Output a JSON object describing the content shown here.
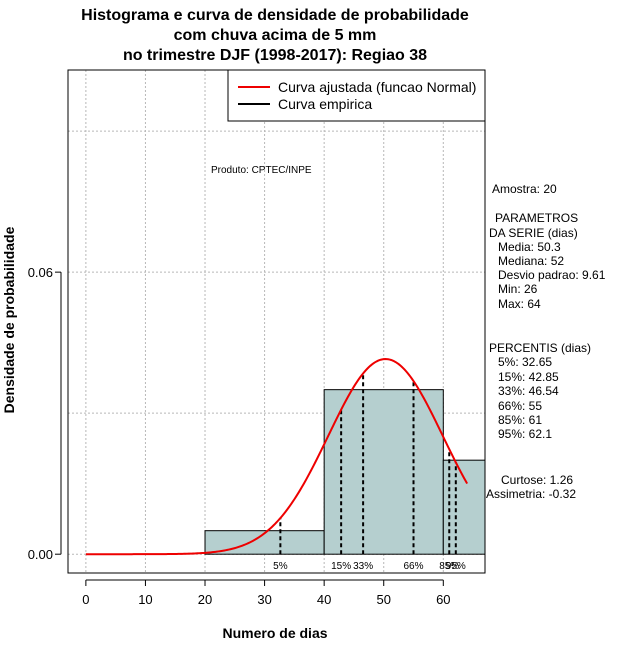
{
  "chart_data": {
    "type": "bar",
    "title_lines": [
      "Histograma e curva de densidade de probabilidade",
      "com chuva acima de 5 mm",
      "no trimestre DJF (1998-2017): Regiao 38"
    ],
    "xlabel": "Numero de dias",
    "ylabel": "Densidade de probabilidade",
    "xlim": [
      -3,
      67
    ],
    "ylim": [
      -0.004,
      0.103
    ],
    "xticks": [
      0,
      10,
      20,
      30,
      40,
      50,
      60
    ],
    "yticks": [
      0.0,
      0.06
    ],
    "ytick_labels": [
      "0.00",
      "0.06"
    ],
    "grid": true,
    "grid_x": [
      0,
      10,
      20,
      30,
      40,
      50,
      60
    ],
    "grid_y": [
      0.0,
      0.03,
      0.06,
      0.09
    ],
    "bins": [
      {
        "start": 20,
        "end": 40,
        "density": 0.005
      },
      {
        "start": 40,
        "end": 60,
        "density": 0.035
      },
      {
        "start": 60,
        "end": 67,
        "density": 0.02
      }
    ],
    "bar_color": "#b5cfcf",
    "curve_color": "#ee0000",
    "normal_fit": {
      "mean": 50.3,
      "sd": 9.61,
      "x_start": 0,
      "x_end": 64
    },
    "legend": {
      "position": "top-right",
      "entries": [
        {
          "label": "Curva ajustada (funcao Normal)",
          "color": "#ee0000"
        },
        {
          "label": "Curva empirica",
          "color": "#000000"
        }
      ]
    },
    "percentile_markers": [
      {
        "label": "5%",
        "value": 32.65
      },
      {
        "label": "15%",
        "value": 42.85
      },
      {
        "label": "33%",
        "value": 46.54
      },
      {
        "label": "66%",
        "value": 55
      },
      {
        "label": "85%",
        "value": 61
      },
      {
        "label": "95%",
        "value": 62.1
      }
    ],
    "annotation_product": "Produto: CPTEC/INPE"
  },
  "side_panel": {
    "amostra": "Amostra: 20",
    "parametros_title_1": "PARAMETROS",
    "parametros_title_2": "DA SERIE (dias)",
    "media": "Media: 50.3",
    "mediana": "Mediana: 52",
    "desvio": "Desvio padrao: 9.61",
    "min": "Min: 26",
    "max": "Max: 64",
    "percentis_title": "PERCENTIS (dias)",
    "percentis": [
      "5%: 32.65",
      "15%: 42.85",
      "33%: 46.54",
      "66%: 55",
      "85%: 61",
      "95%: 62.1"
    ],
    "curtose": "Curtose: 1.26",
    "assimetria": "Assimetria: -0.32"
  }
}
